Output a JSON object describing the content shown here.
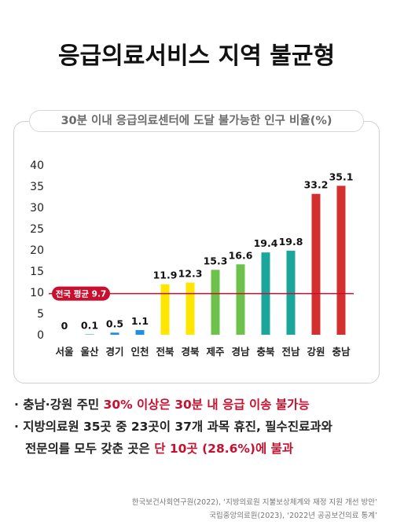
{
  "title": "응급의료서비스 지역 불균형",
  "chart_data": {
    "type": "bar",
    "title": "30분 이내 응급의료센터에 도달 불가능한 인구 비율(%)",
    "categories": [
      "서울",
      "울산",
      "경기",
      "인천",
      "전북",
      "경북",
      "제주",
      "경남",
      "충북",
      "전남",
      "강원",
      "충남"
    ],
    "values": [
      0,
      0.1,
      0.5,
      1.1,
      11.9,
      12.3,
      15.3,
      16.6,
      19.4,
      19.8,
      33.2,
      35.1
    ],
    "value_labels": [
      "0",
      "0.1",
      "0.5",
      "1.1",
      "11.9",
      "12.3",
      "15.3",
      "16.6",
      "19.4",
      "19.8",
      "33.2",
      "35.1"
    ],
    "bar_colors": [
      "#1f8fe0",
      "#1f8fe0",
      "#1f8fe0",
      "#1f8fe0",
      "#ffe600",
      "#ffe600",
      "#6cc24a",
      "#6cc24a",
      "#1aa69b",
      "#1aa69b",
      "#d32f2f",
      "#d32f2f"
    ],
    "ylim": [
      0,
      40
    ],
    "yticks": [
      0,
      5,
      10,
      15,
      20,
      25,
      30,
      35,
      40
    ],
    "xlabel": "",
    "ylabel": "",
    "grid": false,
    "reference_line": {
      "value": 9.7,
      "label": "전국 평균 9.7",
      "color": "#c8102e"
    }
  },
  "bullets": [
    {
      "parts": [
        {
          "text": "· 충남·강원 주민 ",
          "hl": false
        },
        {
          "text": "30% 이상은 30분 내 응급 이송 불가능",
          "hl": true
        }
      ]
    },
    {
      "parts": [
        {
          "text": "· 지방의료원 35곳 중 23곳이 37개 과목 휴진, 필수진료과와",
          "hl": false
        }
      ]
    },
    {
      "parts": [
        {
          "text": "전문의를 모두 갖춘 곳은 ",
          "hl": false
        },
        {
          "text": "단 10곳 (28.6%)에 불과",
          "hl": true
        }
      ],
      "continuation": true
    }
  ],
  "sources": [
    "한국보건사회연구원(2022),  ‘지방의료원 지불보상체계와 재정 지원 개선 방안’",
    "국립중앙의료원(2023), ‘2022년 공공보건의료 통계’"
  ]
}
